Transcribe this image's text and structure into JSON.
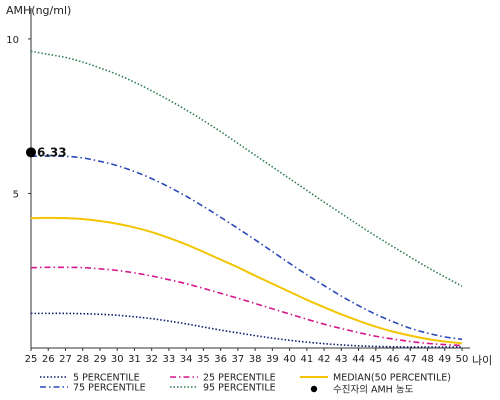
{
  "chart_data": {
    "type": "line",
    "title": "",
    "ylabel": "AMH(ng/ml)",
    "xlabel": "나이",
    "xlim": [
      25,
      50
    ],
    "ylim": [
      0,
      11
    ],
    "y_ticks": [
      5,
      10
    ],
    "x": [
      25,
      26,
      27,
      28,
      29,
      30,
      31,
      32,
      33,
      34,
      35,
      36,
      37,
      38,
      39,
      40,
      41,
      42,
      43,
      44,
      45,
      46,
      47,
      48,
      49,
      50
    ],
    "x_tick_labels": [
      "25",
      "26",
      "27",
      "28",
      "29",
      "30",
      "31",
      "32",
      "33",
      "34",
      "35",
      "36",
      "37",
      "38",
      "39",
      "40",
      "41",
      "42",
      "43",
      "44",
      "45",
      "46",
      "47",
      "48",
      "49",
      "50"
    ],
    "grid": false,
    "legend_position": "bottom",
    "series": [
      {
        "name": "5 PERCENTILE",
        "color": "#0a1a6e",
        "dash": "dotted",
        "values": [
          1.12,
          1.12,
          1.12,
          1.11,
          1.09,
          1.06,
          1.01,
          0.95,
          0.87,
          0.78,
          0.68,
          0.58,
          0.49,
          0.4,
          0.32,
          0.25,
          0.19,
          0.14,
          0.1,
          0.07,
          0.05,
          0.04,
          0.03,
          0.03,
          0.03,
          0.03
        ]
      },
      {
        "name": "25 PERCENTILE",
        "color": "#d6168c",
        "dash": "dashdot",
        "values": [
          2.6,
          2.61,
          2.61,
          2.6,
          2.56,
          2.51,
          2.43,
          2.33,
          2.21,
          2.08,
          1.93,
          1.77,
          1.61,
          1.44,
          1.27,
          1.1,
          0.93,
          0.77,
          0.63,
          0.5,
          0.38,
          0.29,
          0.21,
          0.15,
          0.11,
          0.08
        ]
      },
      {
        "name": "MEDIAN(50 PERCENTILE)",
        "color": "#f2c500",
        "dash": "solid",
        "values": [
          4.2,
          4.21,
          4.2,
          4.17,
          4.11,
          4.02,
          3.9,
          3.75,
          3.56,
          3.35,
          3.11,
          2.86,
          2.61,
          2.34,
          2.08,
          1.82,
          1.56,
          1.32,
          1.09,
          0.88,
          0.69,
          0.53,
          0.4,
          0.29,
          0.21,
          0.15
        ]
      },
      {
        "name": "75 PERCENTILE",
        "color": "#2b48b8",
        "dash": "dashdot",
        "values": [
          6.2,
          6.21,
          6.2,
          6.15,
          6.04,
          5.9,
          5.71,
          5.48,
          5.21,
          4.91,
          4.58,
          4.23,
          3.87,
          3.5,
          3.12,
          2.74,
          2.37,
          2.02,
          1.68,
          1.37,
          1.09,
          0.85,
          0.64,
          0.48,
          0.36,
          0.28
        ]
      },
      {
        "name": "95 PERCENTILE",
        "color": "#2e7d4f",
        "dash": "dotted",
        "values": [
          9.6,
          9.5,
          9.4,
          9.25,
          9.06,
          8.85,
          8.6,
          8.32,
          8.02,
          7.7,
          7.36,
          7.0,
          6.62,
          6.24,
          5.86,
          5.48,
          5.1,
          4.72,
          4.35,
          3.98,
          3.62,
          3.28,
          2.94,
          2.61,
          2.3,
          2.0
        ]
      }
    ],
    "annotation": {
      "name": "수진자의 AMH 농도",
      "x": 25,
      "y": 6.33,
      "label": "6.33",
      "color": "#000000"
    }
  }
}
